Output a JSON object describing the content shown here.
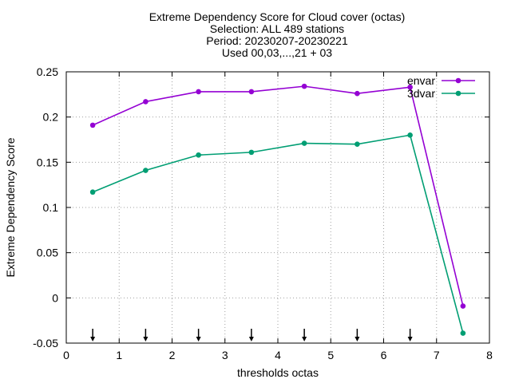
{
  "chart_data": {
    "type": "line",
    "title": [
      "Extreme Dependency Score  for Cloud cover (octas)",
      "Selection: ALL    489 stations",
      "Period: 20230207-20230221",
      "Used 00,03,...,21 + 03"
    ],
    "xlabel": "thresholds octas",
    "ylabel": "Extreme Dependency Score",
    "xlim": [
      0,
      8
    ],
    "ylim": [
      -0.05,
      0.25
    ],
    "xticks": [
      "0",
      "1",
      "2",
      "3",
      "4",
      "5",
      "6",
      "7",
      "8"
    ],
    "yticks": [
      "-0.05",
      "0",
      "0.05",
      "0.1",
      "0.15",
      "0.2",
      "0.25"
    ],
    "grid": true,
    "legend_position": "top-right",
    "x": [
      0.5,
      1.5,
      2.5,
      3.5,
      4.5,
      5.5,
      6.5,
      7.5
    ],
    "series": [
      {
        "name": "envar",
        "color": "#9400d3",
        "values": [
          0.191,
          0.217,
          0.228,
          0.228,
          0.234,
          0.226,
          0.233,
          -0.009
        ]
      },
      {
        "name": "3dvar",
        "color": "#009e73",
        "values": [
          0.117,
          0.141,
          0.158,
          0.161,
          0.171,
          0.17,
          0.18,
          -0.039
        ]
      }
    ],
    "threshold_markers": {
      "x": [
        0.5,
        1.5,
        2.5,
        3.5,
        4.5,
        5.5,
        6.5
      ],
      "y": -0.05,
      "symbol": "arrow-down"
    }
  }
}
